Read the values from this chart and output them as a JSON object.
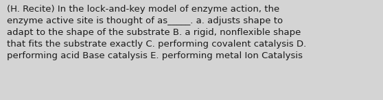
{
  "text": "(H. Recite) In the lock-and-key model of enzyme action, the\nenzyme active site is thought of as_____. a. adjusts shape to\nadapt to the shape of the substrate B. a rigid, nonflexible shape\nthat fits the substrate exactly C. performing covalent catalysis D.\nperforming acid Base catalysis E. performing metal Ion Catalysis",
  "background_color": "#d4d4d4",
  "text_color": "#1a1a1a",
  "font_size": 9.5,
  "fig_width": 5.58,
  "fig_height": 1.46,
  "dpi": 100
}
